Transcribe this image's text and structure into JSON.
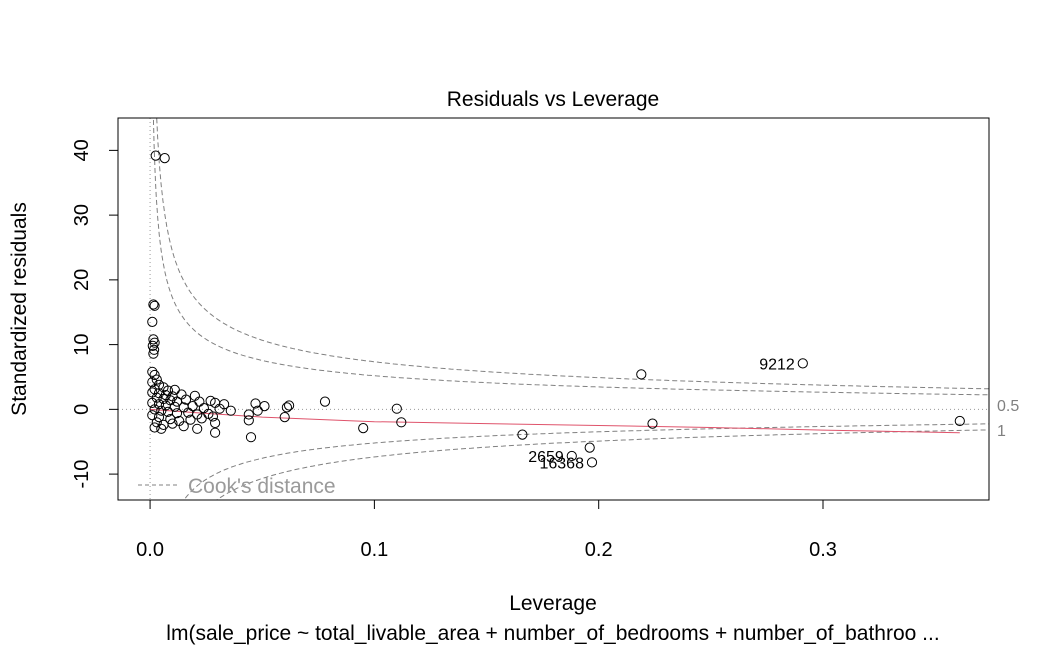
{
  "chart_data": {
    "type": "scatter",
    "title": "Residuals vs Leverage",
    "xlabel": "Leverage",
    "ylabel": "Standardized residuals",
    "subtitle": "lm(sale_price ~ total_livable_area + number_of_bedrooms + number_of_bathroo ...",
    "xlim": [
      -0.0143,
      0.374
    ],
    "ylim": [
      -14,
      45
    ],
    "x_ticks": [
      0.0,
      0.1,
      0.2,
      0.3
    ],
    "x_tick_labels": [
      "0.0",
      "0.1",
      "0.2",
      "0.3"
    ],
    "y_ticks": [
      -10,
      0,
      10,
      20,
      30,
      40
    ],
    "y_tick_labels": [
      "-10",
      "0",
      "10",
      "20",
      "30",
      "40"
    ],
    "grid": false,
    "reference_lines": {
      "x": 0,
      "y": 0
    },
    "points": [
      {
        "x": 0.0025,
        "y": 39.2
      },
      {
        "x": 0.0065,
        "y": 38.8
      },
      {
        "x": 0.0015,
        "y": 16.2
      },
      {
        "x": 0.002,
        "y": 16.0
      },
      {
        "x": 0.001,
        "y": 13.5
      },
      {
        "x": 0.0015,
        "y": 10.8
      },
      {
        "x": 0.002,
        "y": 10.3
      },
      {
        "x": 0.0012,
        "y": 9.8
      },
      {
        "x": 0.0018,
        "y": 9.2
      },
      {
        "x": 0.0015,
        "y": 8.6
      },
      {
        "x": 0.001,
        "y": 5.8
      },
      {
        "x": 0.002,
        "y": 5.3
      },
      {
        "x": 0.003,
        "y": 4.6
      },
      {
        "x": 0.001,
        "y": 4.2
      },
      {
        "x": 0.004,
        "y": 3.8
      },
      {
        "x": 0.006,
        "y": 3.4
      },
      {
        "x": 0.002,
        "y": 3.1
      },
      {
        "x": 0.008,
        "y": 2.9
      },
      {
        "x": 0.011,
        "y": 3.0
      },
      {
        "x": 0.001,
        "y": 2.6
      },
      {
        "x": 0.004,
        "y": 2.5
      },
      {
        "x": 0.007,
        "y": 2.2
      },
      {
        "x": 0.01,
        "y": 2.0
      },
      {
        "x": 0.014,
        "y": 2.3
      },
      {
        "x": 0.02,
        "y": 2.1
      },
      {
        "x": 0.003,
        "y": 1.8
      },
      {
        "x": 0.006,
        "y": 1.6
      },
      {
        "x": 0.009,
        "y": 1.4
      },
      {
        "x": 0.012,
        "y": 1.2
      },
      {
        "x": 0.016,
        "y": 1.5
      },
      {
        "x": 0.022,
        "y": 1.2
      },
      {
        "x": 0.027,
        "y": 1.3
      },
      {
        "x": 0.029,
        "y": 1.0
      },
      {
        "x": 0.033,
        "y": 0.8
      },
      {
        "x": 0.001,
        "y": 1.0
      },
      {
        "x": 0.004,
        "y": 0.8
      },
      {
        "x": 0.007,
        "y": 0.6
      },
      {
        "x": 0.011,
        "y": 0.4
      },
      {
        "x": 0.015,
        "y": 0.3
      },
      {
        "x": 0.019,
        "y": 0.5
      },
      {
        "x": 0.024,
        "y": 0.2
      },
      {
        "x": 0.031,
        "y": 0.1
      },
      {
        "x": 0.036,
        "y": -0.2
      },
      {
        "x": 0.002,
        "y": 0.0
      },
      {
        "x": 0.005,
        "y": -0.2
      },
      {
        "x": 0.008,
        "y": -0.4
      },
      {
        "x": 0.012,
        "y": -0.6
      },
      {
        "x": 0.017,
        "y": -0.5
      },
      {
        "x": 0.021,
        "y": -0.8
      },
      {
        "x": 0.026,
        "y": -0.7
      },
      {
        "x": 0.028,
        "y": -1.1
      },
      {
        "x": 0.001,
        "y": -0.9
      },
      {
        "x": 0.004,
        "y": -1.2
      },
      {
        "x": 0.009,
        "y": -1.5
      },
      {
        "x": 0.013,
        "y": -1.8
      },
      {
        "x": 0.018,
        "y": -1.6
      },
      {
        "x": 0.023,
        "y": -1.4
      },
      {
        "x": 0.003,
        "y": -2.0
      },
      {
        "x": 0.006,
        "y": -2.4
      },
      {
        "x": 0.01,
        "y": -2.2
      },
      {
        "x": 0.015,
        "y": -2.6
      },
      {
        "x": 0.002,
        "y": -2.8
      },
      {
        "x": 0.005,
        "y": -3.0
      },
      {
        "x": 0.021,
        "y": -3.0
      },
      {
        "x": 0.029,
        "y": -3.6
      },
      {
        "x": 0.029,
        "y": -2.1
      },
      {
        "x": 0.044,
        "y": -0.8
      },
      {
        "x": 0.044,
        "y": -1.7
      },
      {
        "x": 0.045,
        "y": -4.3
      },
      {
        "x": 0.047,
        "y": 0.9
      },
      {
        "x": 0.048,
        "y": -0.2
      },
      {
        "x": 0.051,
        "y": 0.5
      },
      {
        "x": 0.06,
        "y": -1.2
      },
      {
        "x": 0.061,
        "y": 0.3
      },
      {
        "x": 0.062,
        "y": 0.6
      },
      {
        "x": 0.078,
        "y": 1.2
      },
      {
        "x": 0.095,
        "y": -2.9
      },
      {
        "x": 0.11,
        "y": 0.1
      },
      {
        "x": 0.112,
        "y": -2.0
      },
      {
        "x": 0.166,
        "y": -3.9
      },
      {
        "x": 0.188,
        "y": -7.2
      },
      {
        "x": 0.196,
        "y": -5.9
      },
      {
        "x": 0.197,
        "y": -8.2
      },
      {
        "x": 0.219,
        "y": 5.4
      },
      {
        "x": 0.224,
        "y": -2.2
      },
      {
        "x": 0.291,
        "y": 7.1
      },
      {
        "x": 0.361,
        "y": -1.8
      }
    ],
    "point_labels": [
      {
        "text": "9212",
        "x": 0.291,
        "y": 7.1
      },
      {
        "text": "2659",
        "x": 0.188,
        "y": -7.2
      },
      {
        "text": "16368",
        "x": 0.197,
        "y": -8.2
      }
    ],
    "smoother": {
      "color": "#df536b",
      "x": [
        0.0,
        0.02,
        0.05,
        0.1,
        0.15,
        0.2,
        0.25,
        0.3,
        0.361
      ],
      "y": [
        0.0,
        -0.5,
        -1.2,
        -1.9,
        -2.2,
        -2.5,
        -2.8,
        -3.2,
        -3.6
      ]
    },
    "cooks_distance": {
      "legend_label": "Cook's distance",
      "legend_position": "bottom-left",
      "n_params": 6,
      "levels": [
        0.5,
        1
      ],
      "level_labels": [
        "0.5",
        "1"
      ]
    }
  }
}
